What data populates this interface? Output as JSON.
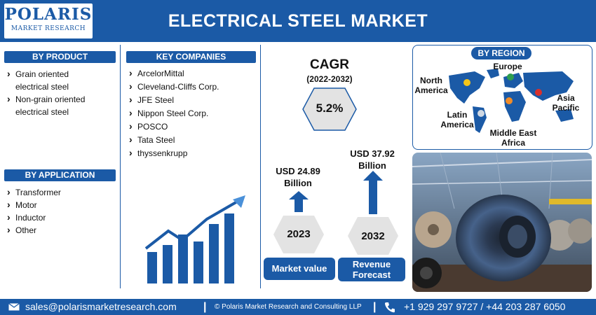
{
  "header": {
    "logo_main": "POLARIS",
    "logo_sub": "MARKET RESEARCH",
    "title": "ELECTRICAL STEEL MARKET"
  },
  "by_product": {
    "heading": "BY PRODUCT",
    "items": [
      {
        "line1": "Grain oriented",
        "line2": "electrical steel"
      },
      {
        "line1": "Non-grain oriented",
        "line2": "electrical steel"
      }
    ]
  },
  "by_application": {
    "heading": "BY APPLICATION",
    "items": [
      "Transformer",
      "Motor",
      "Inductor",
      "Other"
    ]
  },
  "key_companies": {
    "heading": "KEY COMPANIES",
    "items": [
      "ArcelorMittal",
      "Cleveland-Cliffs Corp.",
      "JFE Steel",
      "Nippon Steel Corp.",
      "POSCO",
      "Tata Steel",
      "thyssenkrupp"
    ]
  },
  "stats": {
    "cagr_title": "CAGR",
    "cagr_years": "(2022-2032)",
    "cagr_value": "5.2%",
    "value_2023_line1": "USD 24.89",
    "value_2023_line2": "Billion",
    "value_2032_line1": "USD 37.92",
    "value_2032_line2": "Billion",
    "year_2023": "2023",
    "year_2032": "2032",
    "market_value_label": "Market value",
    "revenue_forecast_line1": "Revenue",
    "revenue_forecast_line2": "Forecast"
  },
  "by_region": {
    "heading": "BY REGION",
    "labels": {
      "europe": "Europe",
      "north_america_1": "North",
      "north_america_2": "America",
      "asia_pacific_1": "Asia",
      "asia_pacific_2": "Pacific",
      "latin_america_1": "Latin",
      "latin_america_2": "America",
      "mea_1": "Middle East",
      "mea_2": "Africa"
    }
  },
  "footer": {
    "email": "sales@polarismarketresearch.com",
    "copyright": "© Polaris Market Research and Consulting LLP",
    "phone": "+1 929 297 9727 / +44 203 287 6050"
  },
  "colors": {
    "brand_blue": "#1b5aa6",
    "hex_gray": "#e3e3e3",
    "arrow_blue": "#1b5aa6"
  }
}
